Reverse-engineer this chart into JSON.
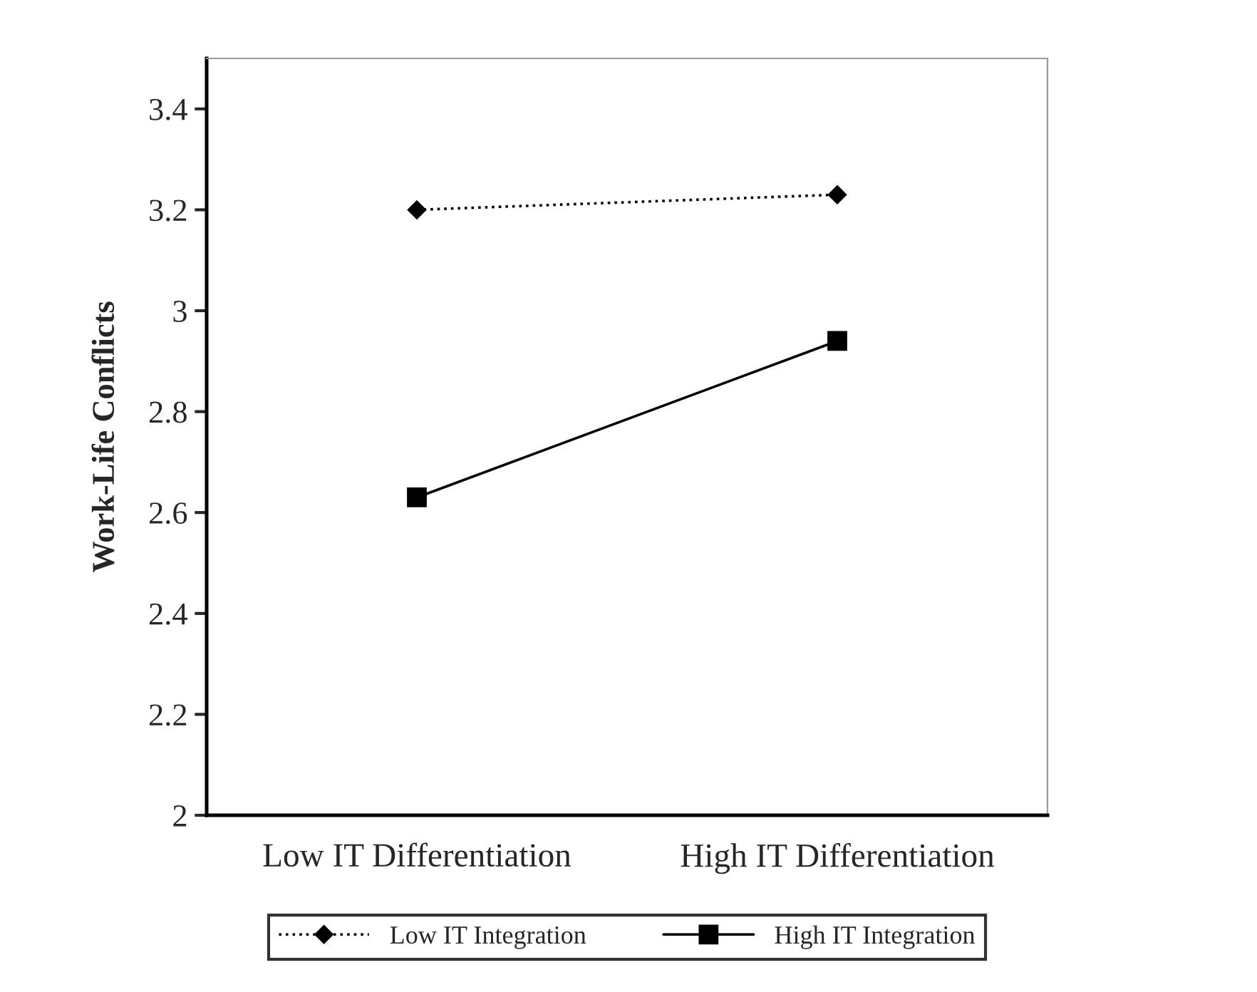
{
  "chart_data": {
    "type": "line",
    "ylabel": "Work-Life Conflicts",
    "categories": [
      "Low IT Differentiation",
      "High IT Differentiation"
    ],
    "series": [
      {
        "name": "Low IT Integration",
        "color": "#000000",
        "values": [
          3.2,
          3.23
        ],
        "marker": "diamond",
        "line_style": "dotted"
      },
      {
        "name": "High IT Integration",
        "color": "#000000",
        "values": [
          2.63,
          2.94
        ],
        "marker": "square",
        "line_style": "solid"
      }
    ],
    "ylim": [
      2,
      3.5
    ],
    "yticks": [
      2,
      2.2,
      2.4,
      2.6,
      2.8,
      3,
      3.2,
      3.4
    ],
    "grid": false,
    "legend": "bottom"
  }
}
